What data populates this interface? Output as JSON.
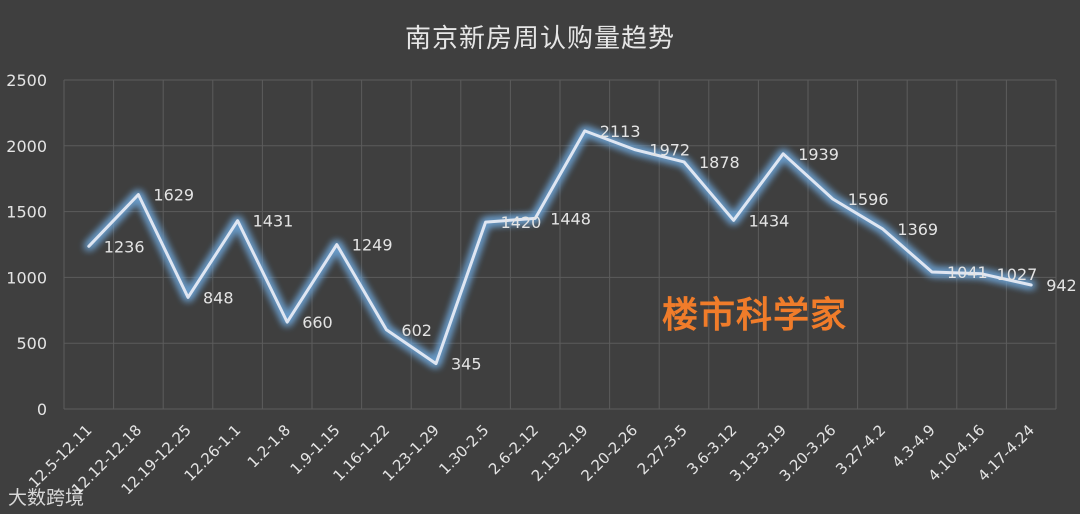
{
  "chart_data": {
    "type": "line",
    "title": "南京新房周认购量趋势",
    "categories": [
      "12.5-12.11",
      "12.12-12.18",
      "12.19-12.25",
      "12.26-1.1",
      "1.2-1.8",
      "1.9-1.15",
      "1.16-1.22",
      "1.23-1.29",
      "1.30-2.5",
      "2.6-2.12",
      "2.13-2.19",
      "2.20-2.26",
      "2.27-3.5",
      "3.6-3.12",
      "3.13-3.19",
      "3.20-3.26",
      "3.27-4.2",
      "4.3-4.9",
      "4.10-4.16",
      "4.17-4.24"
    ],
    "values": [
      1236,
      1629,
      848,
      1431,
      660,
      1249,
      602,
      345,
      1420,
      1448,
      2113,
      1972,
      1878,
      1434,
      1939,
      1596,
      1369,
      1041,
      1027,
      942
    ],
    "data_labels": [
      "1236",
      "1629",
      "848",
      "1431",
      "660",
      "1249",
      "602",
      "345",
      "1420",
      "1448",
      "2113",
      "1972",
      "1878",
      "1434",
      "1939",
      "1596",
      "1369",
      "1041",
      "1027",
      "942"
    ],
    "yticks": [
      "0",
      "500",
      "1000",
      "1500",
      "2000",
      "2500"
    ],
    "ylim": [
      0,
      2500
    ],
    "grid": true,
    "line_color": "#dfe6f2",
    "glow_color": "#6fa8dc",
    "xlabel": "",
    "ylabel": ""
  },
  "watermarks": {
    "brand": "楼市科学家",
    "brand_color": "#f07c2a",
    "source": "大数跨境"
  }
}
